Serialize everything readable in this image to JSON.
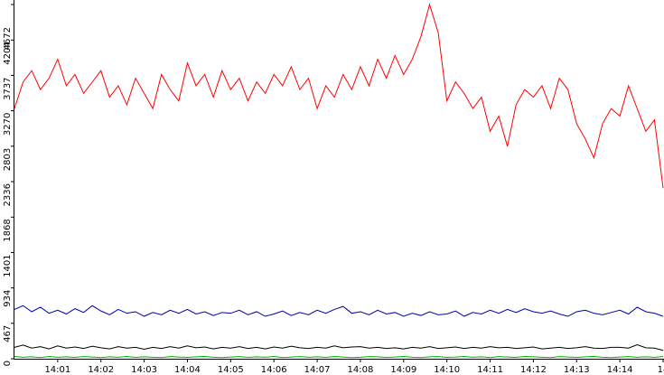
{
  "chart_data": {
    "type": "line",
    "x": [
      0,
      0.2,
      0.4,
      0.6,
      0.8,
      1,
      1.2,
      1.4,
      1.6,
      1.8,
      2,
      2.2,
      2.4,
      2.6,
      2.8,
      3,
      3.2,
      3.4,
      3.6,
      3.8,
      4,
      4.2,
      4.4,
      4.6,
      4.8,
      5,
      5.2,
      5.4,
      5.6,
      5.8,
      6,
      6.2,
      6.4,
      6.6,
      6.8,
      7,
      7.2,
      7.4,
      7.6,
      7.8,
      8,
      8.2,
      8.4,
      8.6,
      8.8,
      9,
      9.2,
      9.4,
      9.6,
      9.8,
      10,
      10.2,
      10.4,
      10.6,
      10.8,
      11,
      11.2,
      11.4,
      11.6,
      11.8,
      12,
      12.2,
      12.4,
      12.6,
      12.8,
      13,
      13.2,
      13.4,
      13.6,
      13.8,
      14,
      14.2,
      14.4,
      14.6,
      14.8,
      15
    ],
    "series": [
      {
        "color": "#ff0000",
        "values": [
          3300,
          3650,
          3800,
          3550,
          3700,
          3950,
          3600,
          3750,
          3500,
          3650,
          3800,
          3450,
          3600,
          3350,
          3700,
          3500,
          3300,
          3750,
          3550,
          3400,
          3900,
          3600,
          3750,
          3450,
          3800,
          3550,
          3700,
          3400,
          3650,
          3500,
          3750,
          3600,
          3850,
          3550,
          3700,
          3300,
          3600,
          3450,
          3750,
          3550,
          3850,
          3600,
          3950,
          3700,
          4000,
          3750,
          3950,
          4250,
          4672,
          4300,
          3400,
          3650,
          3500,
          3300,
          3450,
          3000,
          3200,
          2800,
          3350,
          3550,
          3450,
          3600,
          3300,
          3700,
          3550,
          3100,
          2900,
          2650,
          3100,
          3300,
          3200,
          3600,
          3300,
          3000,
          3150,
          2250
        ]
      },
      {
        "color": "#0000aa",
        "values": [
          650,
          700,
          620,
          680,
          600,
          640,
          590,
          660,
          610,
          700,
          630,
          580,
          650,
          600,
          620,
          560,
          610,
          580,
          640,
          600,
          650,
          590,
          620,
          570,
          610,
          600,
          640,
          580,
          620,
          560,
          590,
          630,
          570,
          610,
          580,
          640,
          600,
          650,
          690,
          600,
          620,
          580,
          640,
          590,
          610,
          560,
          600,
          570,
          620,
          580,
          590,
          630,
          560,
          610,
          590,
          640,
          600,
          650,
          610,
          660,
          620,
          600,
          630,
          590,
          560,
          620,
          640,
          600,
          580,
          610,
          640,
          590,
          680,
          620,
          600,
          560
        ]
      },
      {
        "color": "#000000",
        "values": [
          150,
          180,
          140,
          160,
          130,
          170,
          140,
          155,
          135,
          165,
          145,
          130,
          160,
          140,
          150,
          125,
          150,
          135,
          160,
          140,
          170,
          145,
          155,
          130,
          150,
          140,
          160,
          135,
          150,
          130,
          155,
          140,
          165,
          145,
          135,
          150,
          140,
          170,
          145,
          155,
          160,
          140,
          150,
          135,
          145,
          130,
          150,
          140,
          160,
          135,
          145,
          155,
          135,
          150,
          140,
          160,
          145,
          150,
          135,
          145,
          155,
          130,
          140,
          150,
          135,
          145,
          160,
          140,
          135,
          150,
          150,
          140,
          185,
          145,
          140,
          110
        ]
      },
      {
        "color": "#00aa00",
        "values": [
          30,
          20,
          25,
          15,
          30,
          20,
          25,
          18,
          28,
          22,
          15,
          25,
          20,
          30,
          18,
          25,
          20,
          15,
          28,
          22,
          18,
          25,
          30,
          20,
          15,
          22,
          28,
          18,
          25,
          20,
          30,
          15,
          22,
          28,
          20,
          25,
          18,
          30,
          22,
          15,
          20,
          28,
          25,
          18,
          22,
          30,
          20,
          15,
          25,
          28,
          18,
          22,
          30,
          20,
          25,
          15,
          28,
          22,
          18,
          30,
          25,
          20,
          15,
          28,
          22,
          18,
          25,
          30,
          20,
          15,
          22,
          28,
          20,
          25,
          18,
          30
        ]
      }
    ],
    "xlim": [
      0,
      15
    ],
    "xticks": [
      {
        "value": 1,
        "label": "14:01"
      },
      {
        "value": 2,
        "label": "14:02"
      },
      {
        "value": 3,
        "label": "14:03"
      },
      {
        "value": 4,
        "label": "14:04"
      },
      {
        "value": 5,
        "label": "14:05"
      },
      {
        "value": 6,
        "label": "14:06"
      },
      {
        "value": 7,
        "label": "14:07"
      },
      {
        "value": 8,
        "label": "14:08"
      },
      {
        "value": 9,
        "label": "14:09"
      },
      {
        "value": 10,
        "label": "14:10"
      },
      {
        "value": 11,
        "label": "14:11"
      },
      {
        "value": 12,
        "label": "14:12"
      },
      {
        "value": 13,
        "label": "14:13"
      },
      {
        "value": 14,
        "label": "14:14"
      },
      {
        "value": 15,
        "label": "14"
      }
    ],
    "ylim": [
      0,
      4672
    ],
    "yticks": [
      0,
      467,
      934,
      1401,
      1868,
      2336,
      2803,
      3270,
      3737,
      4204,
      4672
    ]
  }
}
